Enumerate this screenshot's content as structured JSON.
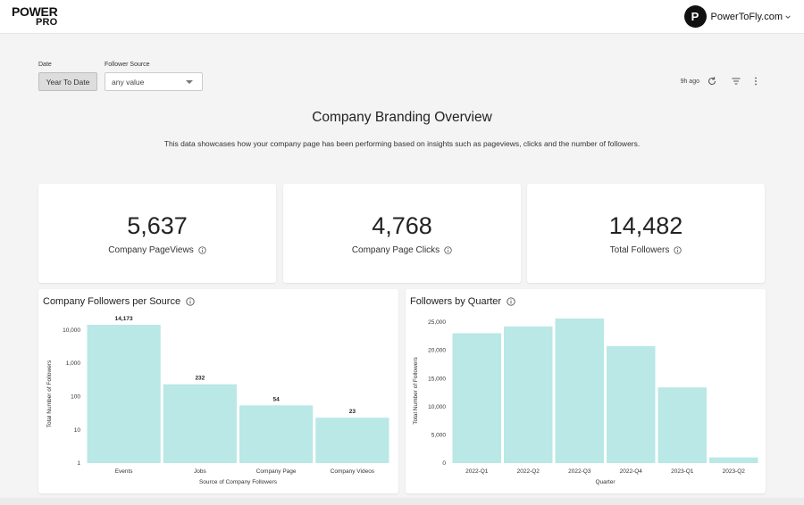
{
  "header": {
    "logo_line1": "POWER",
    "logo_line2": "PRO",
    "avatar_letter": "P",
    "account_name": "PowerToFly.com"
  },
  "filters": {
    "date_label": "Date",
    "date_value": "Year To Date",
    "source_label": "Follower Source",
    "source_value": "any value"
  },
  "toolbar": {
    "last_updated": "9h ago"
  },
  "dashboard": {
    "title": "Company Branding Overview",
    "subtitle": "This data showcases how your company page has been performing based on insights such as pageviews, clicks and the number of followers."
  },
  "kpis": [
    {
      "value": "5,637",
      "label": "Company PageViews"
    },
    {
      "value": "4,768",
      "label": "Company Page Clicks"
    },
    {
      "value": "14,482",
      "label": "Total Followers"
    }
  ],
  "colors": {
    "bar": "#b9e8e6",
    "accent": "#111111"
  },
  "chart_data": [
    {
      "type": "bar",
      "title": "Company Followers per Source",
      "scale": "log",
      "categories": [
        "Events",
        "Jobs",
        "Company Page",
        "Company Videos"
      ],
      "values": [
        14173,
        232,
        54,
        23
      ],
      "value_labels": [
        "14,173",
        "232",
        "54",
        "23"
      ],
      "yticks": [
        1,
        10,
        100,
        1000,
        10000
      ],
      "ytick_labels": [
        "1",
        "10",
        "100",
        "1,000",
        "10,000"
      ],
      "ylim": [
        1,
        14173
      ],
      "xlabel": "Source of Company Followers",
      "ylabel": "Total Number of Followers"
    },
    {
      "type": "bar",
      "title": "Followers by Quarter",
      "scale": "linear",
      "categories": [
        "2022-Q1",
        "2022-Q2",
        "2022-Q3",
        "2022-Q4",
        "2023-Q1",
        "2023-Q2"
      ],
      "values": [
        23000,
        24200,
        25600,
        20700,
        13400,
        1000
      ],
      "yticks": [
        0,
        5000,
        10000,
        15000,
        20000,
        25000
      ],
      "ytick_labels": [
        "0",
        "5,000",
        "10,000",
        "15,000",
        "20,000",
        "25,000"
      ],
      "ylim": [
        0,
        25600
      ],
      "xlabel": "Quarter",
      "ylabel": "Total Number of Followers"
    }
  ]
}
